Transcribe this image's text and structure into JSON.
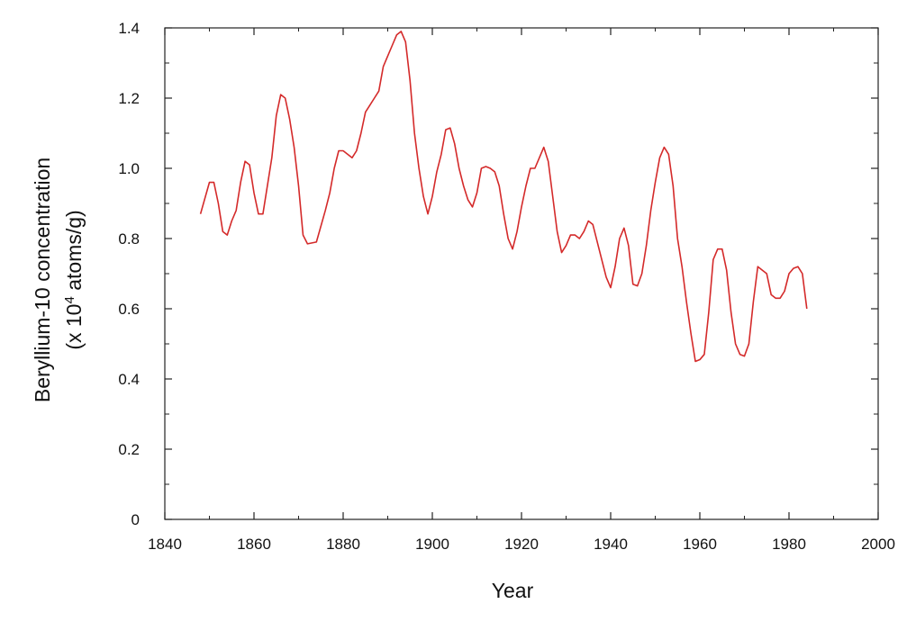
{
  "chart_data": {
    "type": "line",
    "xlabel": "Year",
    "ylabel": "Beryllium-10 concentration",
    "ylabel_line2_prefix": "(x 10",
    "ylabel_superscript": "4",
    "ylabel_line2_suffix": " atoms/g)",
    "xlim": [
      1840,
      2000
    ],
    "ylim": [
      0,
      1.4
    ],
    "x_ticks": [
      1840,
      1860,
      1880,
      1900,
      1920,
      1940,
      1960,
      1980,
      2000
    ],
    "x_tick_labels": [
      "1840",
      "1860",
      "1880",
      "1900",
      "1920",
      "1940",
      "1960",
      "1980",
      "2000"
    ],
    "y_ticks": [
      0,
      0.2,
      0.4,
      0.6,
      0.8,
      1.0,
      1.2,
      1.4
    ],
    "y_tick_labels": [
      "0",
      "0.2",
      "0.4",
      "0.6",
      "0.8",
      "1.0",
      "1.2",
      "1.4"
    ],
    "grid": false,
    "line_color": "#d42a2a",
    "series": [
      {
        "x": [
          1848,
          1850,
          1851,
          1852,
          1853,
          1854,
          1855,
          1856,
          1857,
          1858,
          1859,
          1860,
          1861,
          1862,
          1863,
          1864,
          1865,
          1866,
          1867,
          1868,
          1869,
          1870,
          1871,
          1872,
          1874,
          1876,
          1877,
          1878,
          1879,
          1880,
          1881,
          1882,
          1883,
          1884,
          1885,
          1886,
          1887,
          1888,
          1889,
          1890,
          1891,
          1892,
          1893,
          1894,
          1895,
          1896,
          1897,
          1898,
          1899,
          1900,
          1901,
          1902,
          1903,
          1904,
          1905,
          1906,
          1907,
          1908,
          1909,
          1910,
          1911,
          1912,
          1913,
          1914,
          1915,
          1916,
          1917,
          1918,
          1919,
          1920,
          1921,
          1922,
          1923,
          1924,
          1925,
          1926,
          1927,
          1928,
          1929,
          1930,
          1931,
          1932,
          1933,
          1934,
          1935,
          1936,
          1937,
          1938,
          1939,
          1940,
          1941,
          1942,
          1943,
          1944,
          1945,
          1946,
          1947,
          1948,
          1949,
          1950,
          1951,
          1952,
          1953,
          1954,
          1955,
          1956,
          1957,
          1958,
          1959,
          1960,
          1961,
          1962,
          1963,
          1964,
          1965,
          1966,
          1967,
          1968,
          1969,
          1970,
          1971,
          1972,
          1973,
          1974,
          1975,
          1976,
          1977,
          1978,
          1979,
          1980,
          1981,
          1982,
          1983,
          1984
        ],
        "values": [
          0.87,
          0.96,
          0.96,
          0.9,
          0.82,
          0.81,
          0.85,
          0.88,
          0.96,
          1.02,
          1.01,
          0.93,
          0.87,
          0.87,
          0.95,
          1.03,
          1.15,
          1.21,
          1.2,
          1.14,
          1.06,
          0.95,
          0.81,
          0.785,
          0.79,
          0.88,
          0.93,
          1.0,
          1.05,
          1.05,
          1.04,
          1.03,
          1.05,
          1.1,
          1.16,
          1.18,
          1.2,
          1.22,
          1.29,
          1.32,
          1.35,
          1.38,
          1.39,
          1.36,
          1.25,
          1.1,
          1.0,
          0.92,
          0.87,
          0.92,
          0.99,
          1.04,
          1.11,
          1.115,
          1.07,
          1.0,
          0.95,
          0.91,
          0.89,
          0.93,
          1.0,
          1.005,
          1.0,
          0.99,
          0.95,
          0.87,
          0.8,
          0.77,
          0.82,
          0.89,
          0.95,
          1.0,
          1.0,
          1.03,
          1.06,
          1.02,
          0.92,
          0.82,
          0.76,
          0.78,
          0.81,
          0.81,
          0.8,
          0.82,
          0.85,
          0.84,
          0.79,
          0.74,
          0.69,
          0.66,
          0.72,
          0.8,
          0.83,
          0.78,
          0.67,
          0.665,
          0.7,
          0.78,
          0.88,
          0.96,
          1.03,
          1.06,
          1.04,
          0.95,
          0.8,
          0.72,
          0.62,
          0.53,
          0.45,
          0.455,
          0.47,
          0.59,
          0.74,
          0.77,
          0.77,
          0.71,
          0.59,
          0.5,
          0.47,
          0.465,
          0.5,
          0.62,
          0.72,
          0.71,
          0.7,
          0.64,
          0.63,
          0.63,
          0.65,
          0.7,
          0.715,
          0.72,
          0.7,
          0.6
        ]
      }
    ]
  }
}
